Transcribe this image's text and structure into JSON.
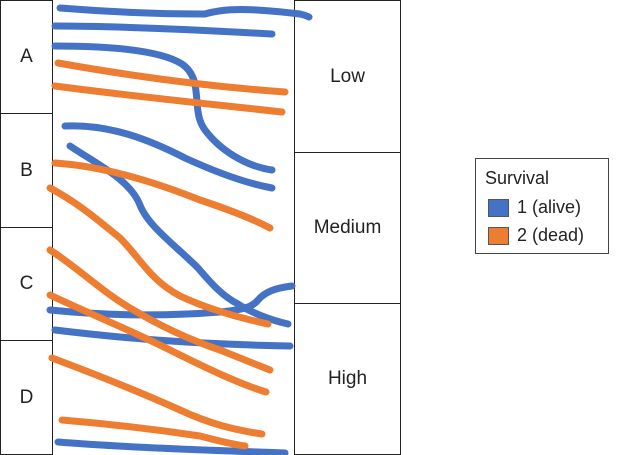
{
  "left_groups": [
    "A",
    "B",
    "C",
    "D"
  ],
  "right_groups": [
    "Low",
    "Medium",
    "High"
  ],
  "legend": {
    "title": "Survival",
    "items": [
      {
        "label": "1 (alive)",
        "color": "#4472C4"
      },
      {
        "label": "2 (dead)",
        "color": "#ED7D31"
      }
    ]
  },
  "colors": {
    "alive": "#4472C4",
    "dead": "#ED7D31",
    "border": "#222222"
  }
}
